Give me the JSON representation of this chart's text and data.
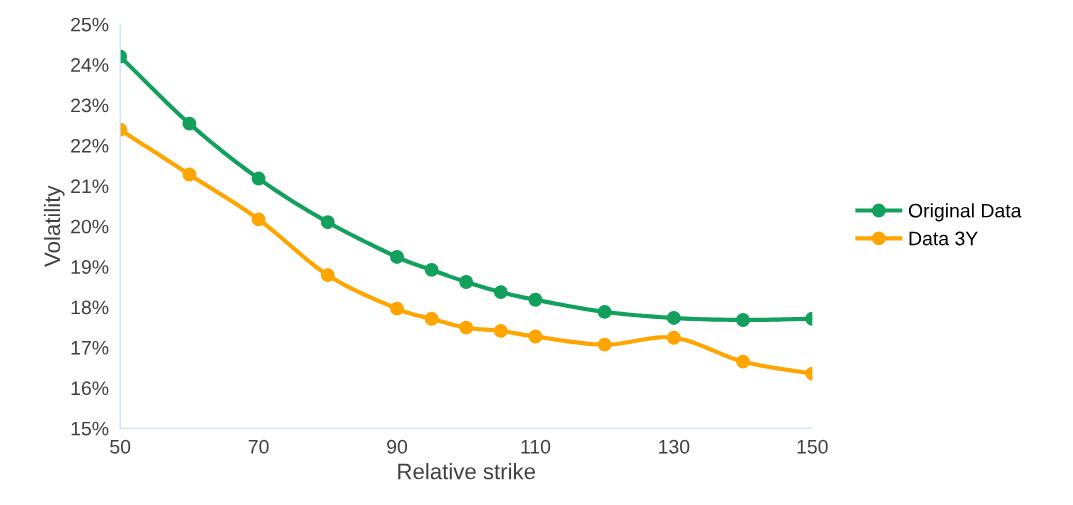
{
  "chart_data": {
    "type": "line",
    "xlabel": "Relative strike",
    "ylabel": "Volatility",
    "x": [
      50,
      60,
      70,
      80,
      90,
      95,
      100,
      105,
      110,
      120,
      130,
      140,
      150
    ],
    "series": [
      {
        "name": "Original Data",
        "color": "#12a05c",
        "values": [
          24.2,
          22.54,
          21.18,
          20.1,
          19.24,
          18.92,
          18.62,
          18.37,
          18.18,
          17.88,
          17.73,
          17.68,
          17.71
        ]
      },
      {
        "name": "Data 3Y",
        "color": "#ffa500",
        "values": [
          22.39,
          21.28,
          20.17,
          18.79,
          17.96,
          17.71,
          17.49,
          17.41,
          17.27,
          17.07,
          17.24,
          16.65,
          16.35
        ]
      }
    ],
    "xlim": [
      50,
      150
    ],
    "xticks": [
      50,
      70,
      90,
      110,
      130,
      150
    ],
    "ylim": [
      15,
      25
    ],
    "yticks": [
      {
        "value": 15,
        "label": "15%"
      },
      {
        "value": 16,
        "label": "16%"
      },
      {
        "value": 17,
        "label": "17%"
      },
      {
        "value": 18,
        "label": "18%"
      },
      {
        "value": 19,
        "label": "19%"
      },
      {
        "value": 20,
        "label": "20%"
      },
      {
        "value": 21,
        "label": "21%"
      },
      {
        "value": 22,
        "label": "22%"
      },
      {
        "value": 23,
        "label": "23%"
      },
      {
        "value": 24,
        "label": "24%"
      },
      {
        "value": 25,
        "label": "25%"
      }
    ],
    "grid": false,
    "legend": "right",
    "marker": "circle",
    "line_style": "solid"
  }
}
